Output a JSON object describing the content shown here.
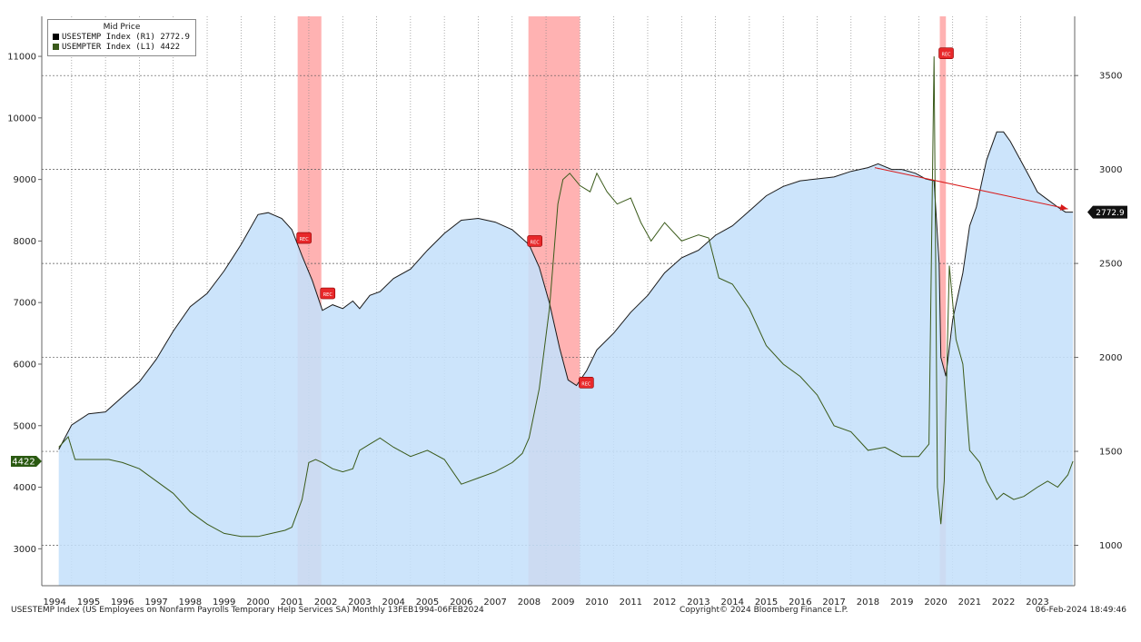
{
  "chart_data": {
    "type": "area",
    "legend": {
      "title": "Mid Price",
      "entries": [
        {
          "label": "USESTEMP Index  (R1) 2772.9",
          "color": "#000000"
        },
        {
          "label": "USEMPTER Index  (L1) 4422",
          "color": "#3a5a1a"
        }
      ],
      "placement": "top-left"
    },
    "x_ticks": [
      "1994",
      "1995",
      "1996",
      "1997",
      "1998",
      "1999",
      "2000",
      "2001",
      "2002",
      "2003",
      "2004",
      "2005",
      "2006",
      "2007",
      "2008",
      "2009",
      "2010",
      "2011",
      "2012",
      "2013",
      "2014",
      "2015",
      "2016",
      "2017",
      "2018",
      "2019",
      "2020",
      "2021",
      "2022",
      "2023"
    ],
    "xlim": [
      1993.62,
      2024.1
    ],
    "left_axis": {
      "ticks": [
        3000,
        4000,
        5000,
        6000,
        7000,
        8000,
        9000,
        10000,
        11000
      ],
      "ylim": [
        2400,
        11650
      ],
      "last_value_label": "4422"
    },
    "right_axis": {
      "ticks": [
        1000,
        1500,
        2000,
        2500,
        3000,
        3500
      ],
      "ylim": [
        785,
        3815
      ],
      "last_value_label": "2772.9"
    },
    "recessions": [
      [
        2001.17,
        2001.87
      ],
      [
        2007.98,
        2009.5
      ],
      [
        2020.12,
        2020.3
      ]
    ],
    "recession_label": "REC",
    "grid": true,
    "series": [
      {
        "name": "USESTEMP Index",
        "axis": "right",
        "style": "area",
        "x": [
          1994.12,
          1994.5,
          1995.0,
          1995.5,
          1996.0,
          1996.5,
          1997.0,
          1997.5,
          1998.0,
          1998.5,
          1999.0,
          1999.5,
          2000.0,
          2000.3,
          2000.7,
          2001.0,
          2001.3,
          2001.6,
          2001.9,
          2002.2,
          2002.5,
          2002.8,
          2003.0,
          2003.3,
          2003.6,
          2004.0,
          2004.5,
          2005.0,
          2005.5,
          2006.0,
          2006.5,
          2007.0,
          2007.5,
          2008.0,
          2008.3,
          2008.6,
          2008.9,
          2009.15,
          2009.4,
          2009.7,
          2010.0,
          2010.5,
          2011.0,
          2011.5,
          2012.0,
          2012.5,
          2013.0,
          2013.5,
          2014.0,
          2014.5,
          2015.0,
          2015.5,
          2016.0,
          2016.5,
          2017.0,
          2017.5,
          2018.0,
          2018.3,
          2018.7,
          2019.0,
          2019.4,
          2019.7,
          2019.95,
          2020.1,
          2020.15,
          2020.3,
          2020.5,
          2020.8,
          2021.0,
          2021.2,
          2021.5,
          2021.8,
          2022.0,
          2022.2,
          2022.5,
          2022.8,
          2023.0,
          2023.3,
          2023.6,
          2023.83,
          2024.05
        ],
        "y": [
          1510,
          1640,
          1700,
          1710,
          1790,
          1870,
          1990,
          2140,
          2270,
          2340,
          2460,
          2600,
          2760,
          2770,
          2740,
          2680,
          2540,
          2410,
          2250,
          2280,
          2260,
          2300,
          2260,
          2330,
          2350,
          2420,
          2470,
          2570,
          2660,
          2730,
          2740,
          2720,
          2680,
          2600,
          2480,
          2290,
          2050,
          1880,
          1850,
          1930,
          2040,
          2130,
          2240,
          2330,
          2450,
          2530,
          2570,
          2650,
          2700,
          2780,
          2860,
          2910,
          2940,
          2950,
          2960,
          2990,
          3010,
          3030,
          3000,
          3000,
          2980,
          2950,
          2940,
          2500,
          2000,
          1900,
          2200,
          2450,
          2700,
          2800,
          3050,
          3200,
          3200,
          3150,
          3050,
          2950,
          2880,
          2840,
          2800,
          2772.9,
          2772.9
        ]
      },
      {
        "name": "USEMPTER Index",
        "axis": "left",
        "style": "line",
        "x": [
          1994.12,
          1994.4,
          1994.6,
          1995.0,
          1995.3,
          1995.6,
          1996.0,
          1996.5,
          1997.0,
          1997.5,
          1998.0,
          1998.5,
          1999.0,
          1999.5,
          2000.0,
          2000.4,
          2000.8,
          2001.0,
          2001.3,
          2001.5,
          2001.7,
          2001.9,
          2002.2,
          2002.5,
          2002.8,
          2003.0,
          2003.3,
          2003.6,
          2004.0,
          2004.5,
          2005.0,
          2005.5,
          2006.0,
          2006.5,
          2007.0,
          2007.5,
          2007.8,
          2008.0,
          2008.3,
          2008.6,
          2008.85,
          2009.0,
          2009.2,
          2009.5,
          2009.8,
          2010.0,
          2010.3,
          2010.6,
          2011.0,
          2011.3,
          2011.6,
          2012.0,
          2012.5,
          2013.0,
          2013.3,
          2013.6,
          2014.0,
          2014.5,
          2015.0,
          2015.5,
          2016.0,
          2016.5,
          2017.0,
          2017.5,
          2018.0,
          2018.5,
          2019.0,
          2019.5,
          2019.8,
          2019.95,
          2020.05,
          2020.15,
          2020.25,
          2020.4,
          2020.6,
          2020.8,
          2021.0,
          2021.3,
          2021.5,
          2021.8,
          2022.0,
          2022.3,
          2022.6,
          2023.0,
          2023.3,
          2023.6,
          2023.9,
          2024.05
        ],
        "y": [
          4650,
          4820,
          4450,
          4450,
          4450,
          4450,
          4400,
          4300,
          4100,
          3900,
          3600,
          3400,
          3250,
          3200,
          3200,
          3250,
          3300,
          3350,
          3800,
          4400,
          4450,
          4400,
          4300,
          4250,
          4300,
          4600,
          4700,
          4800,
          4650,
          4500,
          4600,
          4450,
          4050,
          4150,
          4250,
          4400,
          4550,
          4800,
          5600,
          6900,
          8600,
          9000,
          9100,
          8900,
          8800,
          9100,
          8800,
          8600,
          8700,
          8300,
          8000,
          8300,
          8000,
          8100,
          8050,
          7400,
          7300,
          6900,
          6300,
          6000,
          5800,
          5500,
          5000,
          4900,
          4600,
          4650,
          4500,
          4500,
          4700,
          11000,
          4000,
          3400,
          4100,
          7600,
          6400,
          6000,
          4600,
          4400,
          4100,
          3800,
          3900,
          3800,
          3850,
          4000,
          4100,
          4000,
          4200,
          4422
        ]
      }
    ],
    "trend_arrow": {
      "from_x": 2018.2,
      "from_y": 3010,
      "to_x": 2023.9,
      "to_y": 2790,
      "axis": "right"
    }
  },
  "footer": {
    "left": "USESTEMP Index (US Employees on Nonfarm Payrolls Temporary Help Services SA)  Monthly 13FEB1994-06FEB2024",
    "center": "Copyright© 2024 Bloomberg Finance L.P.",
    "right": "06-Feb-2024 18:49:46"
  },
  "colors": {
    "area_fill": "#c5e0fb",
    "area_line": "#1a1a1a",
    "green_line": "#3a5a1a",
    "recession_band": "#ff9898",
    "trend_arrow": "#d81a1a",
    "left_badge": "#2b5a12",
    "right_badge": "#111111"
  }
}
